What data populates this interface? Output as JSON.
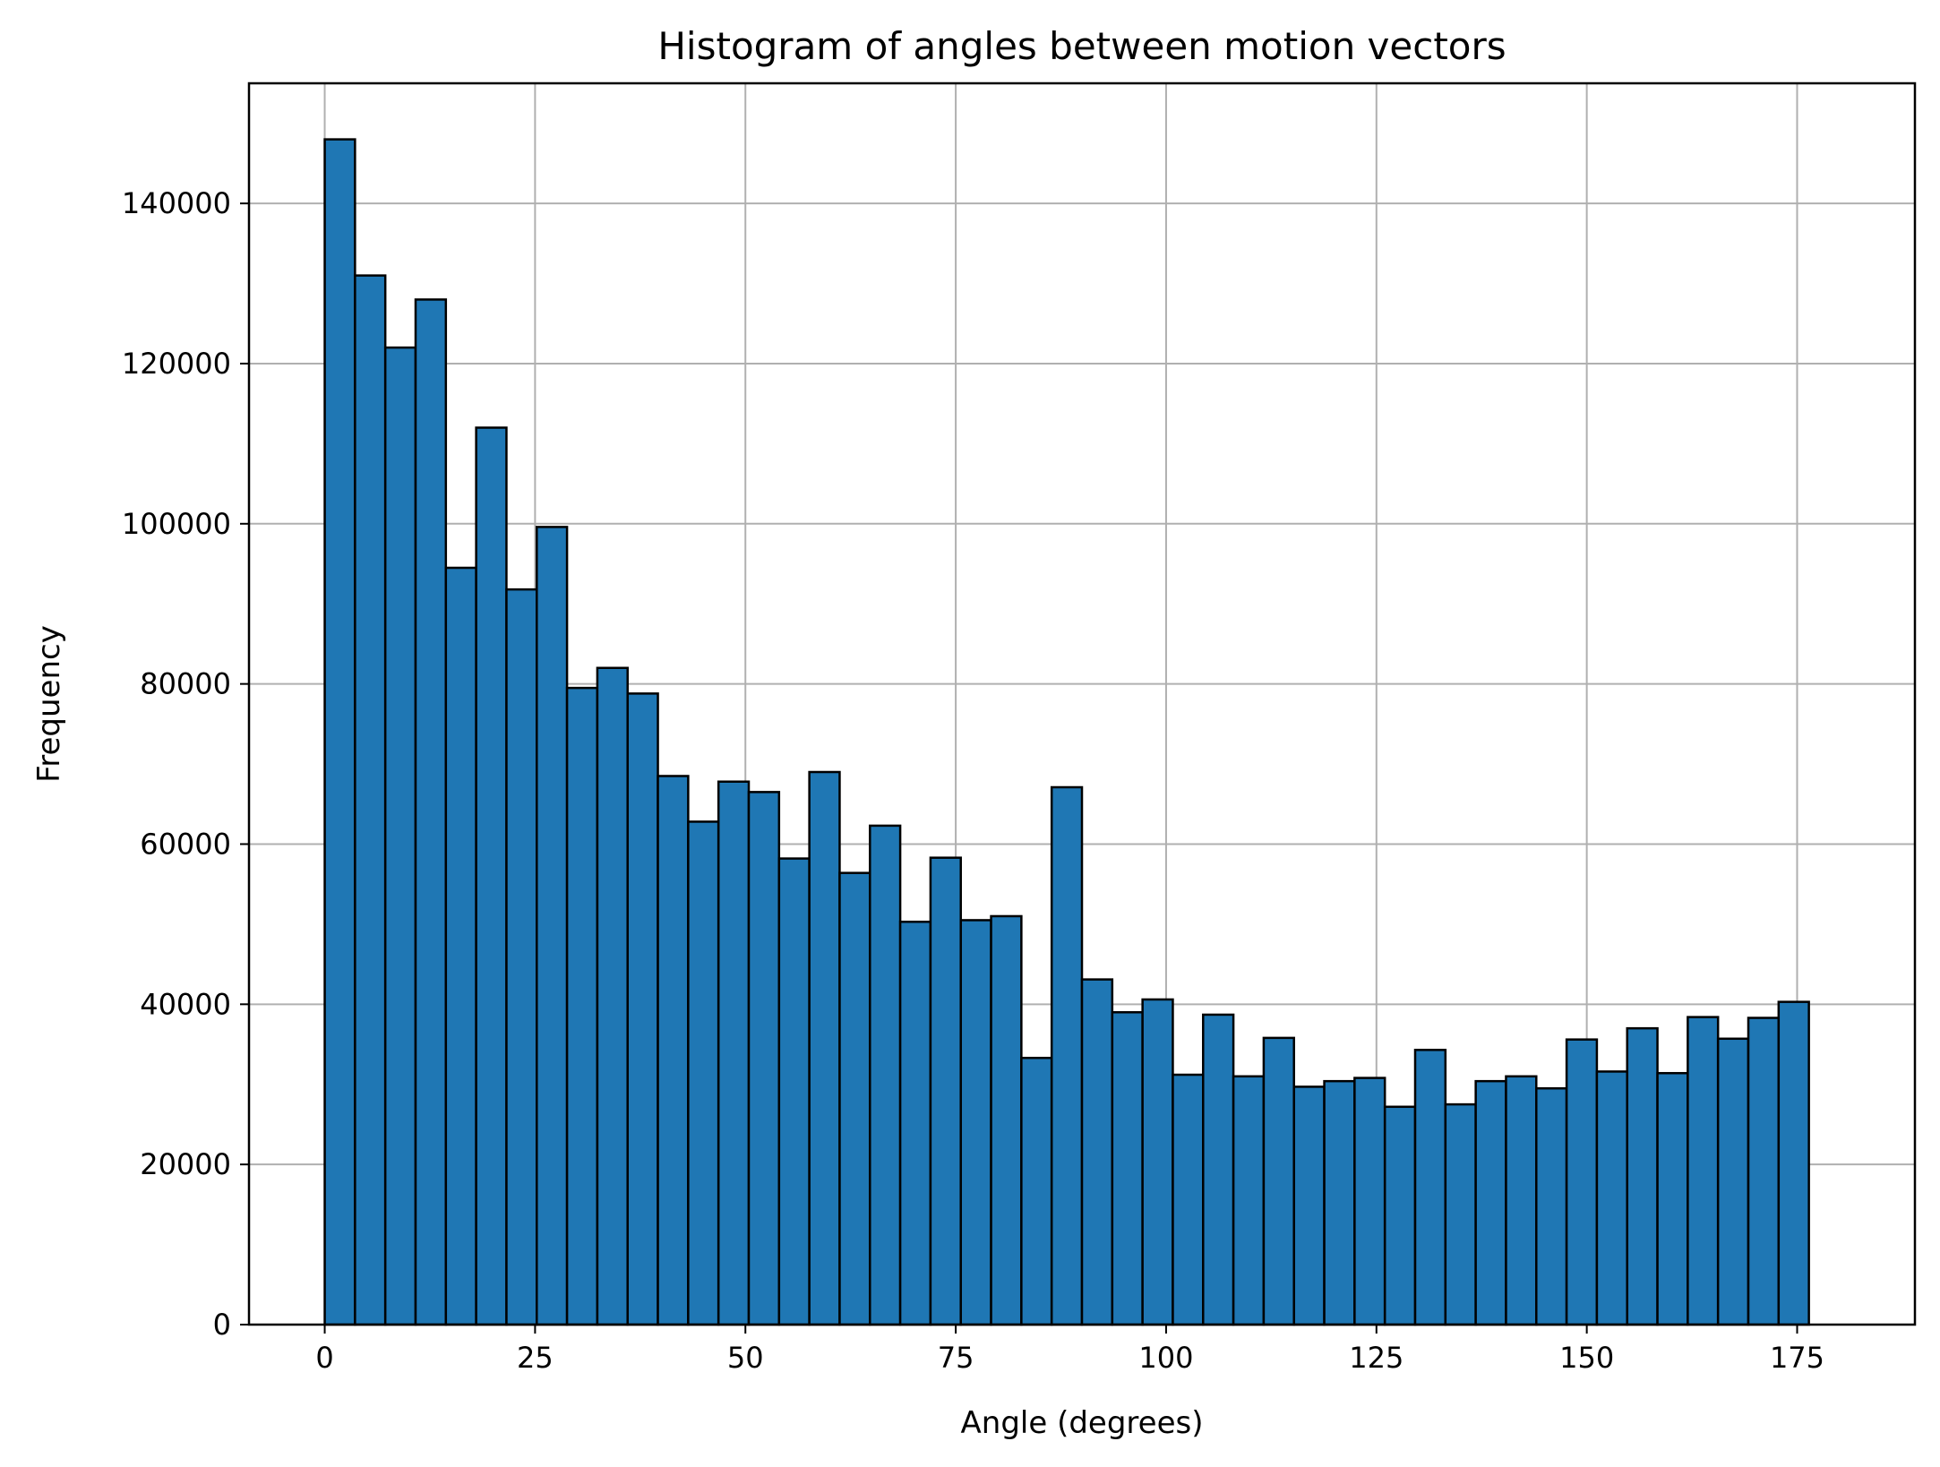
{
  "chart_data": {
    "type": "bar",
    "subtype": "histogram",
    "title": "Histogram of angles between motion vectors",
    "xlabel": "Angle (degrees)",
    "ylabel": "Frequency",
    "xlim": [
      -9,
      189
    ],
    "ylim": [
      0,
      155000
    ],
    "grid": true,
    "bin_start": 0,
    "bin_width": 3.6,
    "values": [
      148000,
      131000,
      122000,
      128000,
      94500,
      112000,
      91800,
      99600,
      79500,
      82000,
      78800,
      68500,
      62800,
      67800,
      66500,
      58200,
      69000,
      56400,
      62300,
      50300,
      58300,
      50500,
      51000,
      33300,
      67100,
      43100,
      39000,
      40600,
      31200,
      38700,
      31000,
      35800,
      29700,
      30400,
      30800,
      27200,
      34300,
      27500,
      30400,
      31000,
      29500,
      35600,
      31600,
      37000,
      31400,
      38400,
      35700,
      38300,
      40300
    ],
    "x_ticks": [
      0,
      25,
      50,
      75,
      100,
      125,
      150,
      175
    ],
    "x_tick_labels": [
      "0",
      "25",
      "50",
      "75",
      "100",
      "125",
      "150",
      "175"
    ],
    "y_ticks": [
      0,
      20000,
      40000,
      60000,
      80000,
      100000,
      120000,
      140000
    ],
    "y_tick_labels": [
      "0",
      "20000",
      "40000",
      "60000",
      "80000",
      "100000",
      "120000",
      "140000"
    ],
    "colors": {
      "bar_fill": "#1f77b4",
      "bar_edge": "#000000",
      "grid": "#b0b0b0",
      "axes": "#000000"
    }
  }
}
